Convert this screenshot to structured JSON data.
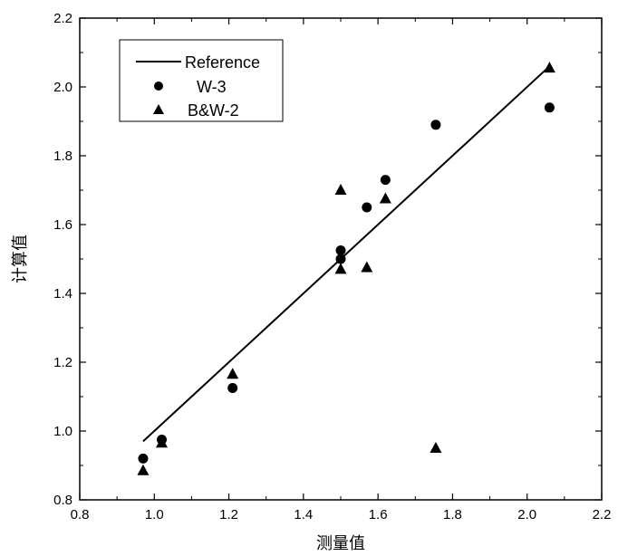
{
  "chart_data": {
    "type": "scatter",
    "title": "",
    "xlabel": "测量值",
    "ylabel": "计算值",
    "xlim": [
      0.8,
      2.2
    ],
    "ylim": [
      0.8,
      2.2
    ],
    "x_ticks": [
      "0.8",
      "1.0",
      "1.2",
      "1.4",
      "1.6",
      "1.8",
      "2.0",
      "2.2"
    ],
    "y_ticks": [
      "0.8",
      "1.0",
      "1.2",
      "1.4",
      "1.6",
      "1.8",
      "2.0",
      "2.2"
    ],
    "grid": false,
    "legend_position": "top-left",
    "series": [
      {
        "name": "Reference",
        "type": "line",
        "color": "#000000",
        "points": [
          [
            0.97,
            0.97
          ],
          [
            2.06,
            2.06
          ]
        ]
      },
      {
        "name": "W-3",
        "type": "scatter",
        "marker": "circle",
        "color": "#000000",
        "points": [
          [
            0.97,
            0.92
          ],
          [
            1.02,
            0.975
          ],
          [
            1.21,
            1.125
          ],
          [
            1.5,
            1.5
          ],
          [
            1.5,
            1.525
          ],
          [
            1.57,
            1.65
          ],
          [
            1.62,
            1.73
          ],
          [
            1.755,
            1.89
          ],
          [
            2.06,
            1.94
          ]
        ]
      },
      {
        "name": "B&W-2",
        "type": "scatter",
        "marker": "triangle",
        "color": "#000000",
        "points": [
          [
            0.97,
            0.885
          ],
          [
            1.02,
            0.965
          ],
          [
            1.21,
            1.165
          ],
          [
            1.5,
            1.47
          ],
          [
            1.5,
            1.7
          ],
          [
            1.57,
            1.475
          ],
          [
            1.62,
            1.675
          ],
          [
            1.755,
            0.95
          ],
          [
            2.06,
            2.055
          ]
        ]
      }
    ]
  }
}
